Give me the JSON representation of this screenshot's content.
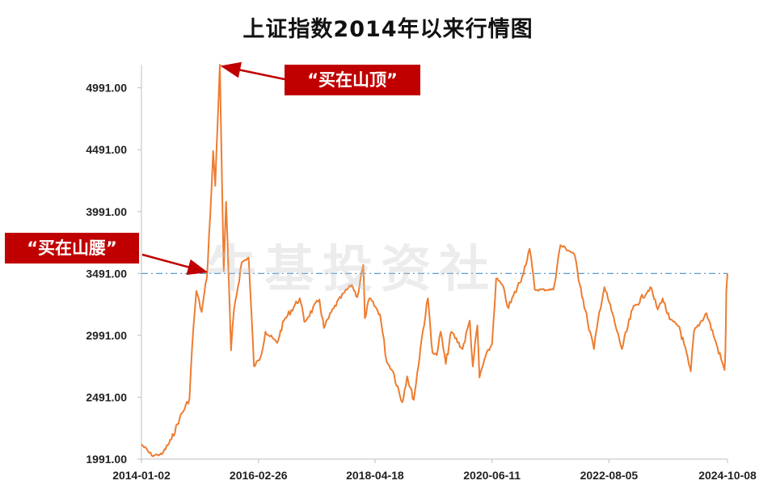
{
  "chart_data": {
    "type": "line",
    "title": "上证指数2014年以来行情图",
    "xlabel": "",
    "ylabel": "",
    "x_ticks": [
      "2014-01-02",
      "2016-02-26",
      "2018-04-18",
      "2020-06-11",
      "2022-08-05",
      "2024-10-08"
    ],
    "y_ticks": [
      "1991.00",
      "2491.00",
      "2991.00",
      "3491.00",
      "3991.00",
      "4491.00",
      "4991.00"
    ],
    "ylim": [
      1991,
      5178
    ],
    "xlim": [
      "2014-01-02",
      "2024-10-08"
    ],
    "reference_line": {
      "value": 3491,
      "style": "dash-dot",
      "color": "#4a90c8"
    },
    "series": [
      {
        "color": "#ed7d31",
        "x": [
          "2014-01-02",
          "2014-03-12",
          "2014-05-20",
          "2014-07-22",
          "2014-09-15",
          "2014-11-20",
          "2014-12-08",
          "2015-01-05",
          "2015-02-10",
          "2015-03-16",
          "2015-04-08",
          "2015-04-28",
          "2015-05-12",
          "2015-06-12",
          "2015-06-26",
          "2015-07-08",
          "2015-07-24",
          "2015-08-26",
          "2015-09-15",
          "2015-11-06",
          "2015-12-22",
          "2016-01-27",
          "2016-03-10",
          "2016-04-13",
          "2016-06-30",
          "2016-08-15",
          "2016-11-29",
          "2016-12-30",
          "2017-04-10",
          "2017-05-10",
          "2017-07-14",
          "2017-09-26",
          "2017-11-13",
          "2017-12-20",
          "2018-01-29",
          "2018-02-09",
          "2018-03-12",
          "2018-05-22",
          "2018-07-05",
          "2018-08-17",
          "2018-10-18",
          "2018-11-19",
          "2019-01-03",
          "2019-02-25",
          "2019-04-08",
          "2019-05-09",
          "2019-06-06",
          "2019-07-02",
          "2019-08-06",
          "2019-09-12",
          "2019-11-26",
          "2020-01-14",
          "2020-02-03",
          "2020-03-05",
          "2020-03-19",
          "2020-04-28",
          "2020-06-11",
          "2020-07-09",
          "2020-08-18",
          "2020-09-29",
          "2020-12-31",
          "2021-02-18",
          "2021-03-25",
          "2021-07-28",
          "2021-09-13",
          "2021-12-13",
          "2022-01-28",
          "2022-03-15",
          "2022-04-26",
          "2022-06-01",
          "2022-07-05",
          "2022-08-05",
          "2022-09-29",
          "2022-10-31",
          "2023-01-10",
          "2023-05-09",
          "2023-06-28",
          "2023-07-31",
          "2023-09-15",
          "2023-11-20",
          "2024-01-22",
          "2024-02-05",
          "2024-02-26",
          "2024-05-20",
          "2024-07-15",
          "2024-09-13",
          "2024-09-18",
          "2024-09-24",
          "2024-09-30",
          "2024-10-08"
        ],
        "values": [
          2110,
          2020,
          2030,
          2150,
          2320,
          2480,
          2900,
          3350,
          3180,
          3450,
          3950,
          4480,
          4200,
          5178,
          4250,
          3510,
          4070,
          2870,
          3200,
          3580,
          3620,
          2740,
          2810,
          3020,
          2930,
          3110,
          3290,
          3100,
          3280,
          3050,
          3210,
          3340,
          3400,
          3300,
          3560,
          3130,
          3290,
          3160,
          2780,
          2700,
          2450,
          2660,
          2470,
          2960,
          3290,
          2850,
          2830,
          3020,
          2760,
          3020,
          2880,
          3110,
          2740,
          3070,
          2650,
          2820,
          2920,
          3450,
          3400,
          3210,
          3470,
          3690,
          3360,
          3360,
          3720,
          3650,
          3370,
          3100,
          2880,
          3180,
          3380,
          3260,
          3020,
          2880,
          3200,
          3380,
          3200,
          3290,
          3120,
          3060,
          2760,
          2700,
          3020,
          3170,
          2960,
          2730,
          2710,
          2870,
          3340,
          3490
        ]
      }
    ],
    "annotations": [
      {
        "label": "“买在山顶”",
        "date": "2015-06-12",
        "value": 5178
      },
      {
        "label": "“买在山腰”",
        "date": "2015-07-08",
        "value": 3491
      }
    ]
  },
  "watermark": "牛基投资社"
}
